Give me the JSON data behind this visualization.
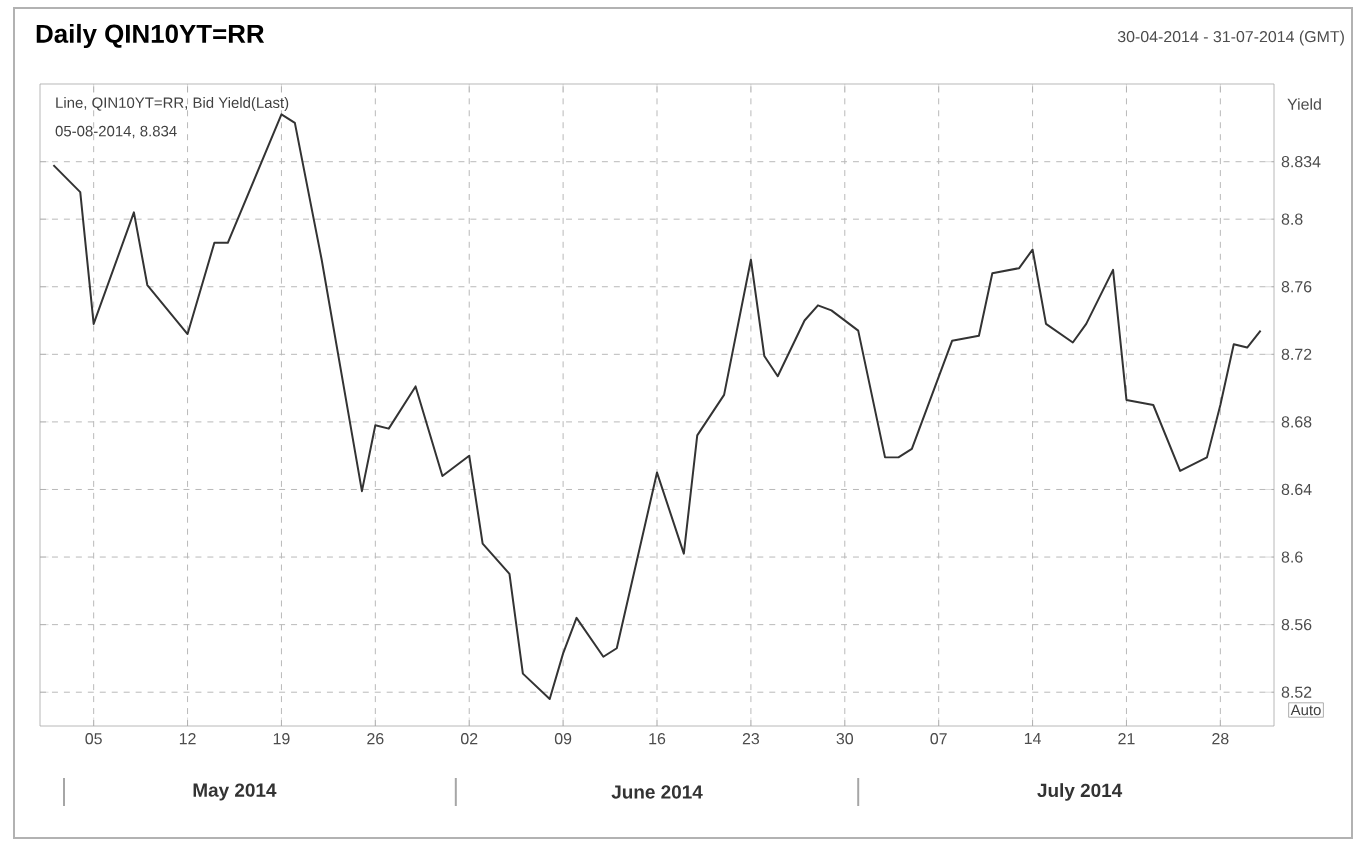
{
  "chart_data": {
    "type": "line",
    "title": "Daily QIN10YT=RR",
    "subtitle": "30-04-2014 - 31-07-2014 (GMT)",
    "ylabel": "Yield",
    "annotations": [
      "Line, QIN10YT=RR, Bid Yield(Last)",
      "05-08-2014, 8.834",
      "May 2014",
      "June 2014",
      "July 2014",
      "Auto"
    ],
    "x": [
      "2014-05-02",
      "2014-05-04",
      "2014-05-05",
      "2014-05-08",
      "2014-05-09",
      "2014-05-12",
      "2014-05-14",
      "2014-05-15",
      "2014-05-19",
      "2014-05-20",
      "2014-05-22",
      "2014-05-25",
      "2014-05-26",
      "2014-05-27",
      "2014-05-29",
      "2014-05-31",
      "2014-06-02",
      "2014-06-03",
      "2014-06-05",
      "2014-06-06",
      "2014-06-08",
      "2014-06-09",
      "2014-06-10",
      "2014-06-12",
      "2014-06-13",
      "2014-06-16",
      "2014-06-18",
      "2014-06-19",
      "2014-06-21",
      "2014-06-23",
      "2014-06-24",
      "2014-06-25",
      "2014-06-27",
      "2014-06-28",
      "2014-06-29",
      "2014-07-01",
      "2014-07-03",
      "2014-07-04",
      "2014-07-05",
      "2014-07-08",
      "2014-07-10",
      "2014-07-11",
      "2014-07-13",
      "2014-07-14",
      "2014-07-15",
      "2014-07-17",
      "2014-07-18",
      "2014-07-20",
      "2014-07-21",
      "2014-07-23",
      "2014-07-25",
      "2014-07-27",
      "2014-07-28",
      "2014-07-29",
      "2014-07-30",
      "2014-07-31"
    ],
    "series": [
      {
        "color": "#333333",
        "values": [
          8.832,
          8.816,
          8.738,
          8.804,
          8.761,
          8.732,
          8.786,
          8.786,
          8.862,
          8.857,
          8.776,
          8.639,
          8.678,
          8.676,
          8.701,
          8.648,
          8.66,
          8.608,
          8.59,
          8.531,
          8.516,
          8.543,
          8.564,
          8.541,
          8.546,
          8.65,
          8.602,
          8.672,
          8.696,
          8.776,
          8.719,
          8.707,
          8.74,
          8.749,
          8.746,
          8.734,
          8.659,
          8.659,
          8.664,
          8.728,
          8.731,
          8.768,
          8.771,
          8.782,
          8.738,
          8.727,
          8.738,
          8.77,
          8.693,
          8.69,
          8.651,
          8.659,
          8.69,
          8.726,
          8.724,
          8.734
        ]
      }
    ],
    "xlim": [
      "2014-05-01",
      "2014-08-01"
    ],
    "xticks": [
      {
        "value": "2014-05-05",
        "label": "05"
      },
      {
        "value": "2014-05-12",
        "label": "12"
      },
      {
        "value": "2014-05-19",
        "label": "19"
      },
      {
        "value": "2014-05-26",
        "label": "26"
      },
      {
        "value": "2014-06-02",
        "label": "02"
      },
      {
        "value": "2014-06-09",
        "label": "09"
      },
      {
        "value": "2014-06-16",
        "label": "16"
      },
      {
        "value": "2014-06-23",
        "label": "23"
      },
      {
        "value": "2014-06-30",
        "label": "30"
      },
      {
        "value": "2014-07-07",
        "label": "07"
      },
      {
        "value": "2014-07-14",
        "label": "14"
      },
      {
        "value": "2014-07-21",
        "label": "21"
      },
      {
        "value": "2014-07-28",
        "label": "28"
      }
    ],
    "ylim": [
      8.5,
      8.88
    ],
    "yticks": [
      8.52,
      8.56,
      8.6,
      8.64,
      8.68,
      8.72,
      8.76,
      8.8,
      8.834
    ],
    "grid": true,
    "marker": "none",
    "line_style": "solid"
  }
}
